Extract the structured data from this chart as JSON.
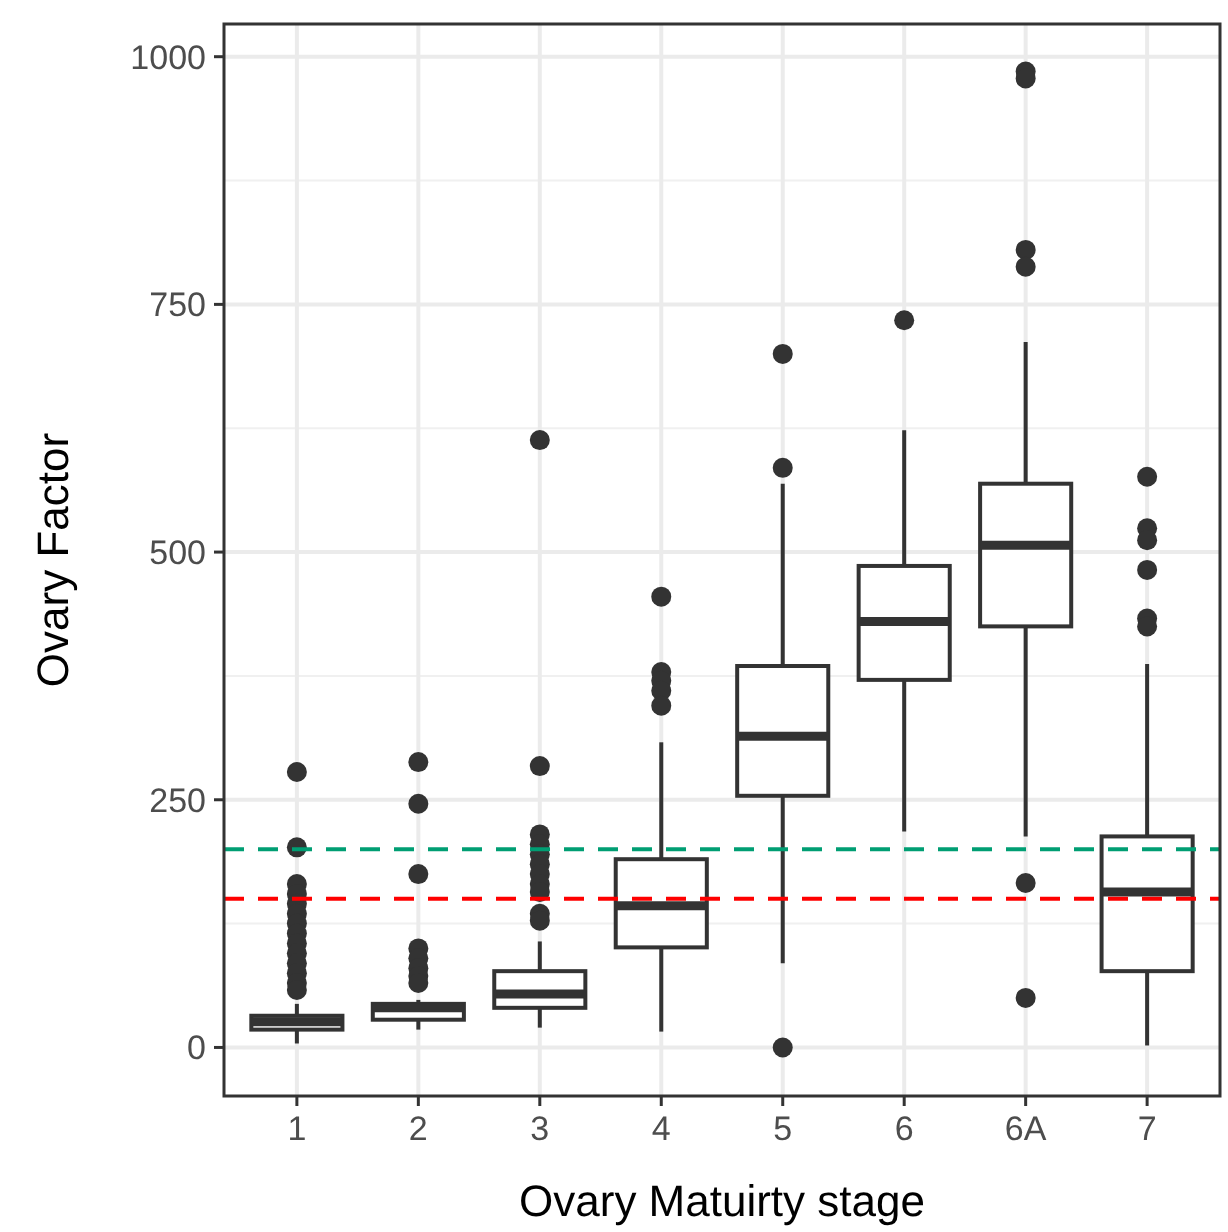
{
  "chart_data": {
    "type": "box",
    "xlabel": "Ovary Matuirty stage",
    "ylabel": "Ovary Factor",
    "categories": [
      "1",
      "2",
      "3",
      "4",
      "5",
      "6",
      "6A",
      "7"
    ],
    "boxes": [
      {
        "low": 4,
        "q1": 18,
        "median": 26,
        "q3": 32,
        "high": 44,
        "outliers": [
          278,
          202,
          165,
          155,
          145,
          135,
          125,
          115,
          105,
          95,
          85,
          75,
          65,
          58
        ]
      },
      {
        "low": 18,
        "q1": 28,
        "median": 40,
        "q3": 44,
        "high": 48,
        "outliers": [
          288,
          246,
          175,
          100,
          90,
          80,
          72,
          65
        ]
      },
      {
        "low": 20,
        "q1": 40,
        "median": 54,
        "q3": 77,
        "high": 107,
        "outliers": [
          613,
          284,
          215,
          205,
          195,
          185,
          175,
          165,
          157,
          135,
          128
        ]
      },
      {
        "low": 16,
        "q1": 101,
        "median": 143,
        "q3": 190,
        "high": 308,
        "outliers": [
          455,
          379,
          370,
          360,
          345
        ]
      },
      {
        "low": 85,
        "q1": 254,
        "median": 314,
        "q3": 385,
        "high": 569,
        "outliers": [
          700,
          585,
          0
        ]
      },
      {
        "low": 218,
        "q1": 371,
        "median": 430,
        "q3": 486,
        "high": 623,
        "outliers": [
          734
        ]
      },
      {
        "low": 213,
        "q1": 425,
        "median": 507,
        "q3": 569,
        "high": 712,
        "outliers": [
          985,
          978,
          805,
          788,
          166,
          50
        ]
      },
      {
        "low": 2,
        "q1": 77,
        "median": 157,
        "q3": 213,
        "high": 387,
        "outliers": [
          576,
          524,
          512,
          482,
          433,
          425
        ]
      }
    ],
    "color": "#333333",
    "ylim": [
      -49,
      1033
    ],
    "yticks": [
      0,
      250,
      500,
      750,
      1000
    ],
    "grid": true,
    "ref_lines": [
      {
        "axis": "y",
        "value": 200,
        "color": "#009e73",
        "line_style": "dashed"
      },
      {
        "axis": "y",
        "value": 150,
        "color": "#ff0000",
        "line_style": "dashed"
      }
    ]
  }
}
